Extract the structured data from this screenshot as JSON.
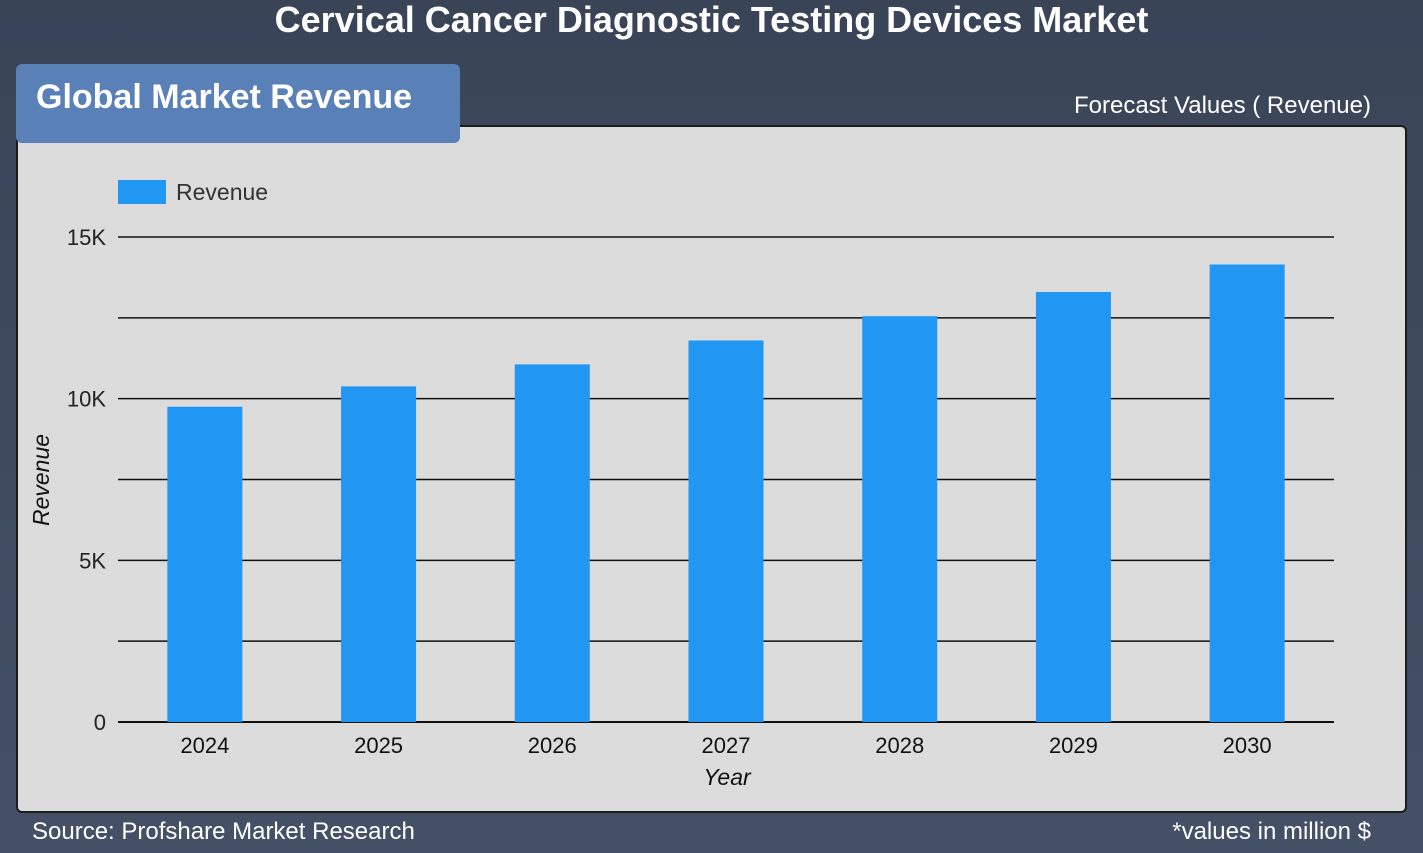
{
  "page": {
    "title": "Cervical Cancer Diagnostic Testing Devices Market",
    "panel_title": "Global Market Revenue",
    "forecast_label": "Forecast Values ( Revenue)",
    "source": "Source: Profshare Market Research",
    "unit_note": "*values in million $"
  },
  "colors": {
    "bar": "#2196f3",
    "panel_bg": "#dcdcdc",
    "tab_bg": "#5a80b8",
    "page_bg": "#3a4457"
  },
  "chart_data": {
    "type": "bar",
    "categories": [
      "2024",
      "2025",
      "2026",
      "2027",
      "2028",
      "2029",
      "2030"
    ],
    "series": [
      {
        "name": "Revenue",
        "values": [
          9750,
          10380,
          11060,
          11800,
          12550,
          13300,
          14150
        ]
      }
    ],
    "xlabel": "Year",
    "ylabel": "Revenue",
    "ylim": [
      0,
      15000
    ],
    "yticks": [
      {
        "value": 0,
        "label": "0"
      },
      {
        "value": 5000,
        "label": "5K"
      },
      {
        "value": 10000,
        "label": "10K"
      },
      {
        "value": 15000,
        "label": "15K"
      }
    ],
    "gridlines": [
      0,
      2500,
      5000,
      7500,
      10000,
      12500,
      15000
    ],
    "grid": true,
    "legend_position": "top-left"
  }
}
